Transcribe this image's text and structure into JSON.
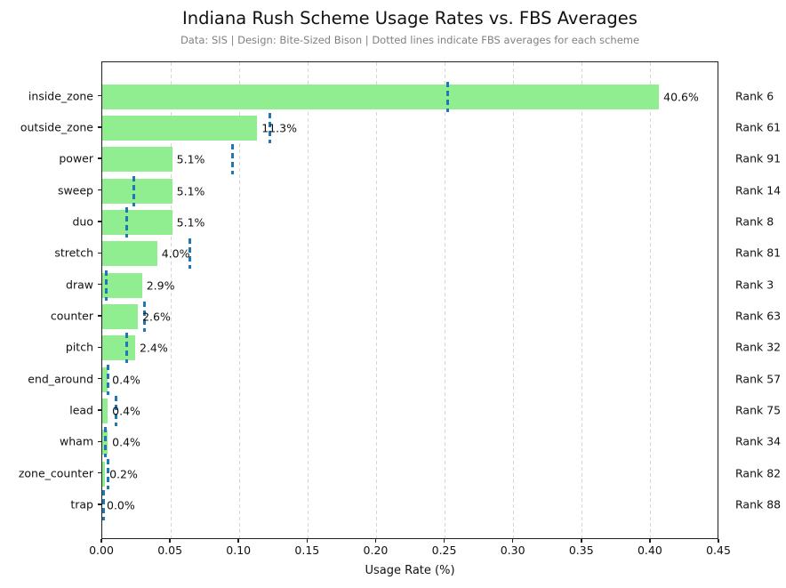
{
  "title": "Indiana Rush Scheme Usage Rates vs. FBS Averages",
  "subtitle": "Data: SIS | Design: Bite-Sized Bison | Dotted lines indicate FBS averages for each scheme",
  "xlabel": "Usage Rate (%)",
  "colors": {
    "bar": "#90ee90",
    "fbs_average_line": "#1f77b4",
    "gridline": "#d6d6d6",
    "subtitle_text": "#808080",
    "text": "#111111"
  },
  "chart_data": {
    "type": "bar",
    "orientation": "horizontal",
    "title": "Indiana Rush Scheme Usage Rates vs. FBS Averages",
    "subtitle": "Data: SIS | Design: Bite-Sized Bison | Dotted lines indicate FBS averages for each scheme",
    "xlabel": "Usage Rate (%)",
    "xlim": [
      0,
      0.45
    ],
    "xticks": [
      0.0,
      0.05,
      0.1,
      0.15,
      0.2,
      0.25,
      0.3,
      0.35,
      0.4,
      0.45
    ],
    "xtick_labels": [
      "0.00",
      "0.05",
      "0.10",
      "0.15",
      "0.20",
      "0.25",
      "0.30",
      "0.35",
      "0.40",
      "0.45"
    ],
    "grid": "vertical dashed, behind bars",
    "legend": "none",
    "categories": [
      "inside_zone",
      "outside_zone",
      "power",
      "sweep",
      "duo",
      "stretch",
      "draw",
      "counter",
      "pitch",
      "end_around",
      "lead",
      "wham",
      "zone_counter",
      "trap"
    ],
    "series": [
      {
        "name": "Indiana usage rate",
        "values": [
          0.406,
          0.113,
          0.051,
          0.051,
          0.051,
          0.04,
          0.029,
          0.026,
          0.024,
          0.004,
          0.004,
          0.004,
          0.002,
          0.0
        ]
      },
      {
        "name": "FBS average (dotted line)",
        "values": [
          0.252,
          0.122,
          0.095,
          0.023,
          0.018,
          0.064,
          0.003,
          0.031,
          0.018,
          0.004,
          0.01,
          0.002,
          0.004,
          0.001
        ]
      }
    ],
    "value_labels": [
      "40.6%",
      "11.3%",
      "5.1%",
      "5.1%",
      "5.1%",
      "4.0%",
      "2.9%",
      "2.6%",
      "2.4%",
      "0.4%",
      "0.4%",
      "0.4%",
      "0.2%",
      "0.0%"
    ],
    "rank_labels": [
      "Rank 6",
      "Rank 61",
      "Rank 91",
      "Rank 14",
      "Rank 8",
      "Rank 81",
      "Rank 3",
      "Rank 63",
      "Rank 32",
      "Rank 57",
      "Rank 75",
      "Rank 34",
      "Rank 82",
      "Rank 88"
    ]
  }
}
